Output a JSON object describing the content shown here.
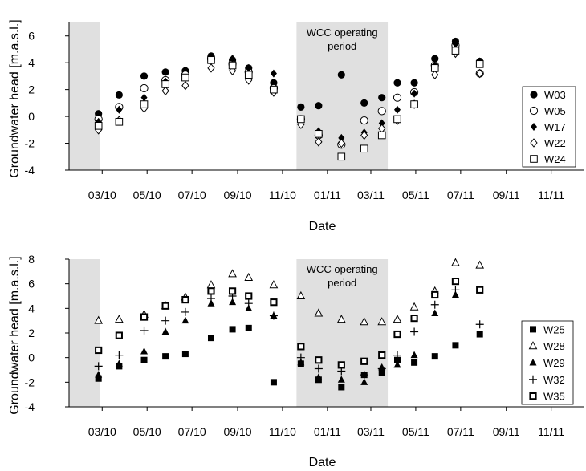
{
  "chart_data": [
    {
      "type": "scatter",
      "title": "",
      "xlabel": "Date",
      "ylabel": "Groundwater head [m.a.s.l.]",
      "xlim": [
        "2010-01-15",
        "2011-12-15"
      ],
      "ylim": [
        -4,
        7
      ],
      "yticks": [
        -4,
        -2,
        0,
        2,
        4,
        6
      ],
      "xticks": [
        "03/10",
        "05/10",
        "07/10",
        "09/10",
        "11/10",
        "01/11",
        "03/11",
        "05/11",
        "07/11",
        "09/11",
        "11/11"
      ],
      "xtick_dates": [
        "2010-03-01",
        "2010-05-01",
        "2010-07-01",
        "2010-09-01",
        "2010-11-01",
        "2011-01-01",
        "2011-03-01",
        "2011-05-01",
        "2011-07-01",
        "2011-09-01",
        "2011-11-01"
      ],
      "grid": false,
      "legend_position": "right",
      "shaded_periods": [
        {
          "start": "2010-01-15",
          "end": "2010-02-26",
          "label": ""
        },
        {
          "start": "2010-11-20",
          "end": "2011-03-24",
          "label": "WCC operating period"
        }
      ],
      "x": [
        "2010-02-24",
        "2010-03-24",
        "2010-04-27",
        "2010-05-26",
        "2010-06-22",
        "2010-07-27",
        "2010-08-25",
        "2010-09-16",
        "2010-10-20",
        "2010-11-26",
        "2010-12-20",
        "2011-01-20",
        "2011-02-20",
        "2011-03-16",
        "2011-04-06",
        "2011-04-29",
        "2011-05-27",
        "2011-06-24",
        "2011-07-27",
        "2011-08-31"
      ],
      "series": [
        {
          "name": "W03",
          "marker": "circle-filled",
          "values": [
            0.2,
            1.6,
            3.0,
            3.3,
            3.4,
            4.5,
            4.2,
            3.6,
            2.5,
            0.7,
            0.8,
            3.1,
            1.0,
            1.4,
            2.5,
            2.5,
            4.3,
            5.6,
            4.1,
            null
          ]
        },
        {
          "name": "W05",
          "marker": "circle-open",
          "values": [
            -0.2,
            0.7,
            2.1,
            2.7,
            3.1,
            4.3,
            3.9,
            3.3,
            2.1,
            -0.2,
            -1.4,
            -2.1,
            -0.3,
            0.4,
            1.4,
            1.8,
            3.8,
            5.3,
            3.2,
            null
          ]
        },
        {
          "name": "W17",
          "marker": "diamond-filled",
          "values": [
            -0.4,
            0.5,
            1.4,
            2.6,
            2.9,
            4.4,
            4.3,
            3.6,
            3.2,
            -0.3,
            -1.1,
            -1.6,
            -1.2,
            -0.5,
            0.5,
            1.7,
            3.8,
            5.4,
            4.1,
            null
          ]
        },
        {
          "name": "W22",
          "marker": "diamond-open",
          "values": [
            -1.0,
            -0.3,
            0.6,
            1.9,
            2.3,
            3.6,
            3.4,
            2.7,
            1.8,
            -0.6,
            -1.9,
            -2.0,
            -1.4,
            -0.9,
            -0.3,
            0.9,
            3.1,
            4.7,
            3.2,
            null
          ]
        },
        {
          "name": "W24",
          "marker": "square-open",
          "values": [
            -0.7,
            -0.4,
            0.9,
            2.4,
            2.9,
            4.2,
            3.8,
            3.1,
            2.0,
            -0.2,
            -1.3,
            -3.0,
            -2.4,
            -1.4,
            -0.2,
            0.9,
            3.6,
            4.9,
            3.9,
            null
          ]
        }
      ]
    },
    {
      "type": "scatter",
      "title": "",
      "xlabel": "Date",
      "ylabel": "Groundwater head [m.a.s.l.]",
      "xlim": [
        "2010-01-15",
        "2011-12-15"
      ],
      "ylim": [
        -4,
        8
      ],
      "yticks": [
        -4,
        -2,
        0,
        2,
        4,
        6,
        8
      ],
      "xticks": [
        "03/10",
        "05/10",
        "07/10",
        "09/10",
        "11/10",
        "01/11",
        "03/11",
        "05/11",
        "07/11",
        "09/11",
        "11/11"
      ],
      "xtick_dates": [
        "2010-03-01",
        "2010-05-01",
        "2010-07-01",
        "2010-09-01",
        "2010-11-01",
        "2011-01-01",
        "2011-03-01",
        "2011-05-01",
        "2011-07-01",
        "2011-09-01",
        "2011-11-01"
      ],
      "grid": false,
      "legend_position": "right",
      "shaded_periods": [
        {
          "start": "2010-01-15",
          "end": "2010-02-26",
          "label": ""
        },
        {
          "start": "2010-11-20",
          "end": "2011-03-24",
          "label": "WCC operating period"
        }
      ],
      "x": [
        "2010-02-24",
        "2010-03-24",
        "2010-04-27",
        "2010-05-26",
        "2010-06-22",
        "2010-07-27",
        "2010-08-25",
        "2010-09-16",
        "2010-10-20",
        "2010-11-26",
        "2010-12-20",
        "2011-01-20",
        "2011-02-20",
        "2011-03-16",
        "2011-04-06",
        "2011-04-29",
        "2011-05-27",
        "2011-06-24",
        "2011-07-27",
        "2011-08-31"
      ],
      "series": [
        {
          "name": "W25",
          "marker": "square-filled",
          "values": [
            -1.7,
            -0.7,
            -0.2,
            0.1,
            0.3,
            1.6,
            2.3,
            2.4,
            -2.0,
            -0.5,
            -1.8,
            -2.4,
            -1.4,
            -1.2,
            -0.2,
            -0.4,
            0.1,
            1.0,
            1.9,
            null
          ]
        },
        {
          "name": "W28",
          "marker": "triangle-open",
          "values": [
            3.0,
            3.1,
            3.5,
            4.2,
            4.9,
            5.9,
            6.8,
            6.5,
            5.9,
            5.0,
            3.6,
            3.1,
            2.9,
            2.9,
            3.1,
            4.1,
            5.4,
            7.7,
            7.5,
            null
          ]
        },
        {
          "name": "W29",
          "marker": "triangle-filled",
          "values": [
            -1.4,
            -0.5,
            0.5,
            2.1,
            3.0,
            4.4,
            4.5,
            4.0,
            3.4,
            -0.4,
            -1.6,
            -1.8,
            -2.0,
            -0.8,
            -0.6,
            0.2,
            3.6,
            5.1,
            5.5,
            null
          ]
        },
        {
          "name": "W32",
          "marker": "plus",
          "values": [
            -0.7,
            0.2,
            2.2,
            3.0,
            3.7,
            4.8,
            5.0,
            4.4,
            3.4,
            0.0,
            -0.9,
            -1.1,
            -1.4,
            -0.9,
            0.2,
            2.1,
            4.3,
            5.5,
            2.7,
            null
          ]
        },
        {
          "name": "W35",
          "marker": "square-bold",
          "values": [
            0.6,
            1.8,
            3.3,
            4.2,
            4.7,
            5.4,
            5.4,
            5.0,
            4.5,
            0.9,
            -0.2,
            -0.6,
            -0.3,
            0.2,
            1.9,
            3.2,
            5.1,
            6.2,
            5.5,
            null
          ]
        }
      ]
    }
  ]
}
